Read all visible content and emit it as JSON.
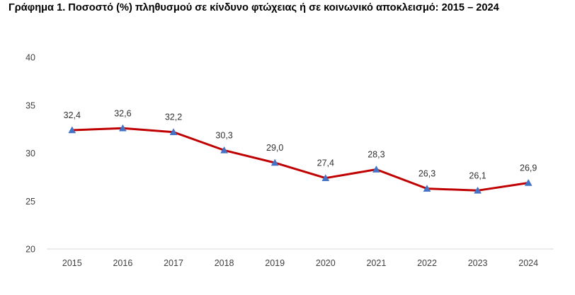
{
  "chart_data": {
    "type": "line",
    "title": "Γράφημα 1. Ποσοστό (%) πληθυσμού σε κίνδυνο φτώχειας ή σε κοινωνικό αποκλεισμό: 2015 – 2024",
    "xlabel": "",
    "ylabel": "",
    "categories": [
      "2015",
      "2016",
      "2017",
      "2018",
      "2019",
      "2020",
      "2021",
      "2022",
      "2023",
      "2024"
    ],
    "series": [
      {
        "values": [
          32.4,
          32.6,
          32.2,
          30.3,
          29.0,
          27.4,
          28.3,
          26.3,
          26.1,
          26.9
        ],
        "labels": [
          "32,4",
          "32,6",
          "32,2",
          "30,3",
          "29,0",
          "27,4",
          "28,3",
          "26,3",
          "26,1",
          "26,9"
        ],
        "line_color": "#C00000",
        "marker": "triangle",
        "marker_color": "#4472C4"
      }
    ],
    "ylim": [
      20,
      40
    ],
    "yticks": [
      "20",
      "25",
      "30",
      "35",
      "40"
    ],
    "grid": false,
    "legend": "none",
    "data_labels": "above"
  }
}
